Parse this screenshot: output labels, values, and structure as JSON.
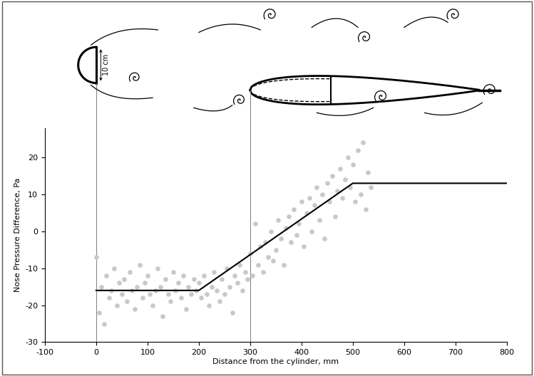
{
  "chart_data": {
    "type": "scatter",
    "x_label": "Distance from the cylinder, mm",
    "y_label": "Nose Pressure Difference, Pa",
    "annotations": [
      "10 cm"
    ],
    "reference_lines": [
      0,
      300
    ],
    "xlim": [
      -100,
      800
    ],
    "xticks": [
      -100,
      0,
      100,
      200,
      300,
      400,
      500,
      600,
      700,
      800
    ],
    "ylim": [
      -30,
      28
    ],
    "yticks": [
      -30,
      -20,
      -10,
      0,
      10,
      20
    ],
    "grid": false,
    "series": [
      {
        "type": "scatter",
        "color": "#c8c8c8",
        "marker": "o",
        "x": [
          0,
          5,
          10,
          15,
          20,
          25,
          30,
          35,
          40,
          45,
          50,
          55,
          60,
          65,
          70,
          75,
          80,
          85,
          90,
          95,
          100,
          105,
          110,
          115,
          120,
          125,
          130,
          135,
          140,
          145,
          150,
          155,
          160,
          165,
          170,
          175,
          180,
          185,
          190,
          195,
          200,
          205,
          210,
          215,
          220,
          225,
          230,
          235,
          240,
          245,
          250,
          255,
          260,
          265,
          270,
          275,
          280,
          285,
          290,
          295,
          300,
          305,
          310,
          315,
          320,
          325,
          330,
          335,
          340,
          345,
          350,
          355,
          360,
          365,
          370,
          375,
          380,
          385,
          390,
          395,
          400,
          405,
          410,
          415,
          420,
          425,
          430,
          435,
          440,
          445,
          450,
          455,
          460,
          465,
          470,
          475,
          480,
          485,
          490,
          495,
          500,
          505,
          510,
          515,
          520,
          525,
          530,
          535
        ],
        "values": [
          -7,
          -22,
          -15,
          -25,
          -12,
          -18,
          -16,
          -10,
          -20,
          -14,
          -17,
          -13,
          -19,
          -11,
          -16,
          -21,
          -15,
          -9,
          -18,
          -14,
          -12,
          -17,
          -20,
          -16,
          -10,
          -15,
          -23,
          -13,
          -17,
          -19,
          -11,
          -16,
          -14,
          -18,
          -12,
          -21,
          -15,
          -17,
          -13,
          -16,
          -14,
          -18,
          -12,
          -17,
          -20,
          -15,
          -11,
          -16,
          -19,
          -13,
          -17,
          -10,
          -15,
          -22,
          -12,
          -14,
          -9,
          -16,
          -11,
          -13,
          -6,
          -12,
          2,
          -9,
          -4,
          -11,
          -3,
          -7,
          0,
          -8,
          -5,
          3,
          -2,
          -9,
          1,
          4,
          -3,
          6,
          -1,
          2,
          8,
          -4,
          5,
          9,
          0,
          7,
          12,
          3,
          10,
          -2,
          13,
          8,
          15,
          4,
          11,
          17,
          9,
          14,
          20,
          12,
          18,
          8,
          22,
          10,
          24,
          6,
          16,
          12
        ]
      },
      {
        "type": "line",
        "color": "#000000",
        "line_style": "solid",
        "x": [
          0,
          200,
          500,
          800
        ],
        "values": [
          -16,
          -16,
          13,
          13
        ]
      }
    ]
  }
}
